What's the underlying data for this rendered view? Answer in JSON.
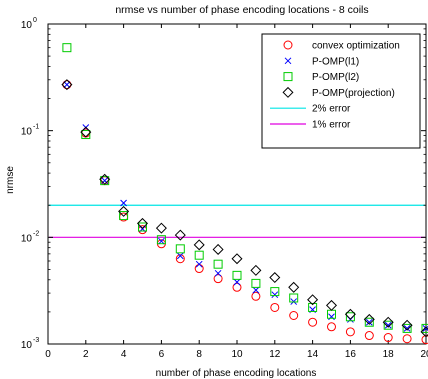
{
  "chart_data": {
    "type": "scatter",
    "title": "nrmse vs number of phase encoding locations - 8 coils",
    "xlabel": "number of phase encoding locations",
    "ylabel": "nrmse",
    "xlim": [
      0,
      20
    ],
    "ylim": [
      0.001,
      1
    ],
    "yscale": "log",
    "xticks": [
      0,
      2,
      4,
      6,
      8,
      10,
      12,
      14,
      16,
      18,
      20
    ],
    "xtick_labels": [
      "0",
      "2",
      "4",
      "6",
      "8",
      "10",
      "12",
      "14",
      "16",
      "18",
      "20"
    ],
    "yticks": [
      {
        "value": 1,
        "base": "10",
        "exp": "0"
      },
      {
        "value": 0.1,
        "base": "10",
        "exp": "-1"
      },
      {
        "value": 0.01,
        "base": "10",
        "exp": "-2"
      },
      {
        "value": 0.001,
        "base": "10",
        "exp": "-3"
      }
    ],
    "grid": false,
    "legend_position": "top-right",
    "x": [
      1,
      2,
      3,
      4,
      5,
      6,
      7,
      8,
      9,
      10,
      11,
      12,
      13,
      14,
      15,
      16,
      17,
      18,
      19,
      20
    ],
    "series": [
      {
        "name": "convex optimization",
        "marker": "circle",
        "color": "#ff0000",
        "values": [
          0.27,
          0.095,
          0.034,
          0.0155,
          0.0118,
          0.0087,
          0.0063,
          0.0051,
          0.0041,
          0.0034,
          0.0028,
          0.0022,
          0.00185,
          0.0016,
          0.00145,
          0.0013,
          0.0012,
          0.00115,
          0.00112,
          0.0011
        ]
      },
      {
        "name": "P-OMP(l1)",
        "marker": "x",
        "color": "#0000ff",
        "values": [
          0.27,
          0.107,
          0.034,
          0.021,
          0.012,
          0.0092,
          0.0067,
          0.0056,
          0.0046,
          0.0038,
          0.0032,
          0.0029,
          0.0025,
          0.0021,
          0.0018,
          0.0017,
          0.0016,
          0.0015,
          0.0014,
          0.0014
        ]
      },
      {
        "name": "P-OMP(l2)",
        "marker": "square",
        "color": "#00cc00",
        "values": [
          0.6,
          0.092,
          0.034,
          0.016,
          0.0125,
          0.0095,
          0.0078,
          0.0068,
          0.0056,
          0.0044,
          0.0037,
          0.0031,
          0.0027,
          0.0022,
          0.0019,
          0.0018,
          0.0016,
          0.0015,
          0.0014,
          0.0014
        ]
      },
      {
        "name": "P-OMP(projection)",
        "marker": "diamond",
        "color": "#000000",
        "values": [
          0.27,
          0.097,
          0.035,
          0.0175,
          0.0135,
          0.0122,
          0.0105,
          0.0085,
          0.0077,
          0.0063,
          0.0049,
          0.0042,
          0.0034,
          0.0026,
          0.0023,
          0.0019,
          0.0017,
          0.0016,
          0.0015,
          0.0013
        ]
      }
    ],
    "reference_lines": [
      {
        "name": "2% error",
        "value": 0.02,
        "color": "#00e5e5"
      },
      {
        "name": "1% error",
        "value": 0.01,
        "color": "#e000e0"
      }
    ]
  }
}
